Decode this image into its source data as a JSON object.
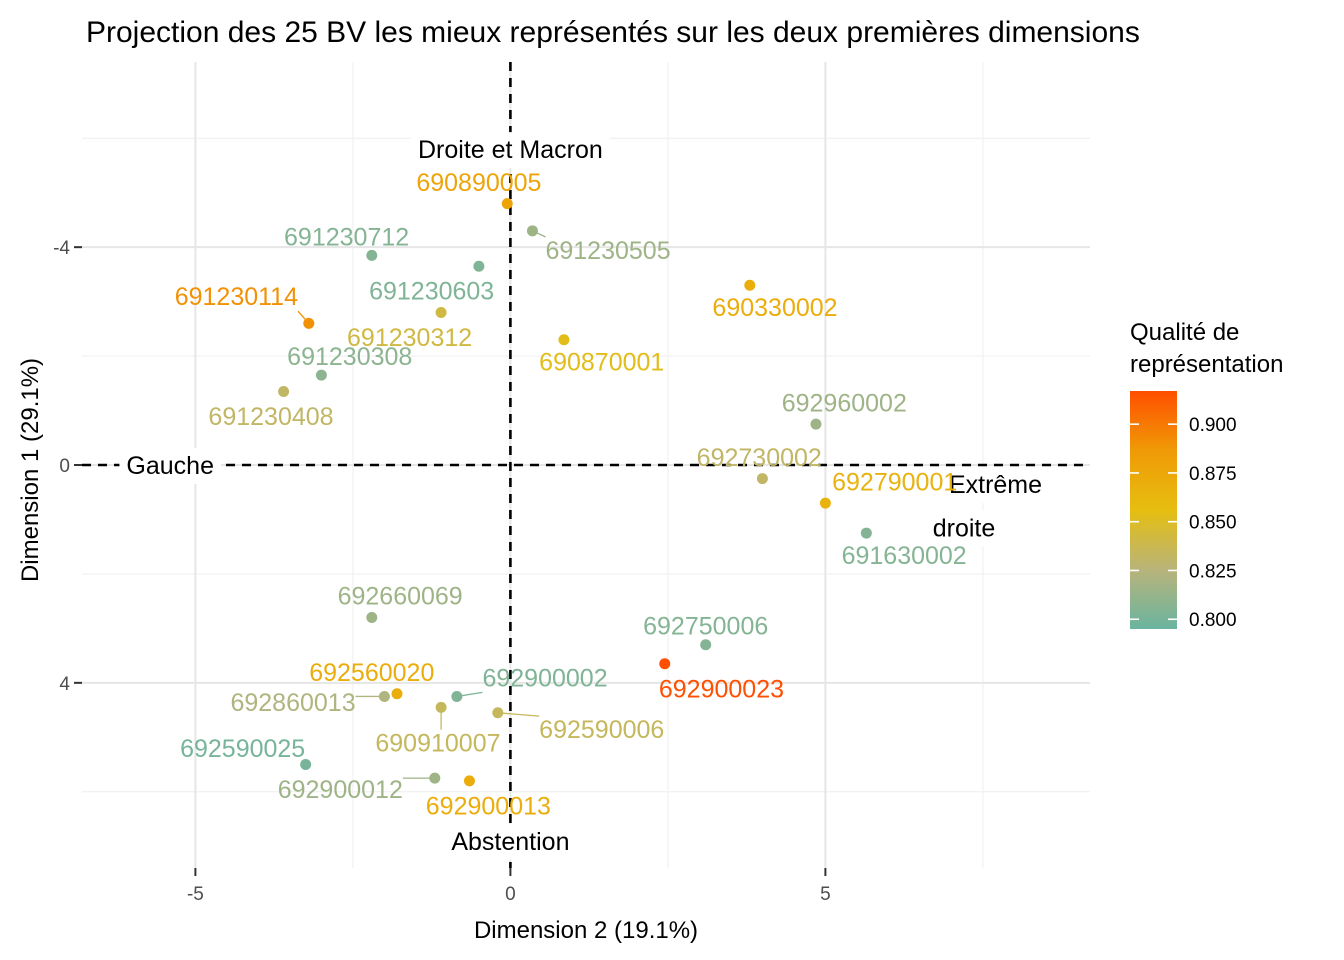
{
  "chart_data": {
    "type": "scatter",
    "title": "Projection des 25 BV les mieux représentés sur les deux premières dimensions",
    "xlabel": "Dimension 2 (19.1%)",
    "ylabel": "Dimension 1 (29.1%)",
    "xlim": [
      -6.8,
      9.2
    ],
    "ylim": [
      -7.4,
      7.4
    ],
    "y_reversed": true,
    "grid": true,
    "x_ticks": [
      -5,
      0,
      5
    ],
    "x_tick_labels": [
      "-5",
      "0",
      "5"
    ],
    "y_ticks": [
      -4,
      0,
      4
    ],
    "y_tick_labels": [
      "-4",
      "0",
      "4"
    ],
    "reference_lines": {
      "x": 0,
      "y": 0,
      "style": "dashed"
    },
    "annotations": [
      {
        "text": "Droite et Macron",
        "x": 0,
        "y": -5.8
      },
      {
        "text": "Gauche",
        "x": -5.4,
        "y": 0
      },
      {
        "text": "Extrême",
        "x": 7.7,
        "y": 0.35
      },
      {
        "text": "droite",
        "x": 7.2,
        "y": 1.15
      },
      {
        "text": "Abstention",
        "x": 0,
        "y": 6.9
      }
    ],
    "legend": {
      "title_lines": [
        "Qualité de",
        "représentation"
      ],
      "position": "right",
      "min": 0.795,
      "max": 0.917,
      "ticks": [
        "0.800",
        "0.825",
        "0.850",
        "0.875",
        "0.900"
      ],
      "tick_values": [
        0.8,
        0.825,
        0.85,
        0.875,
        0.9
      ]
    },
    "points": [
      {
        "label": "690890005",
        "x": -0.05,
        "y": -4.8,
        "quality": 0.868,
        "lx": -0.5,
        "ly": -5.2
      },
      {
        "label": "691230505",
        "x": 0.35,
        "y": -4.3,
        "quality": 0.815,
        "lx": 1.55,
        "ly": -3.95
      },
      {
        "label": "691230712",
        "x": -2.2,
        "y": -3.85,
        "quality": 0.805,
        "lx": -2.6,
        "ly": -4.2
      },
      {
        "label": "691230603",
        "x": -0.5,
        "y": -3.65,
        "quality": 0.803,
        "lx": -1.25,
        "ly": -3.2
      },
      {
        "label": "690330002",
        "x": 3.8,
        "y": -3.3,
        "quality": 0.862,
        "lx": 4.2,
        "ly": -2.9
      },
      {
        "label": "691230114",
        "x": -3.2,
        "y": -2.6,
        "quality": 0.88,
        "lx": -4.35,
        "ly": -3.1
      },
      {
        "label": "691230312",
        "x": -1.1,
        "y": -2.8,
        "quality": 0.838,
        "lx": -1.6,
        "ly": -2.35
      },
      {
        "label": "690870001",
        "x": 0.85,
        "y": -2.3,
        "quality": 0.848,
        "lx": 1.45,
        "ly": -1.9
      },
      {
        "label": "691230308",
        "x": -3.0,
        "y": -1.65,
        "quality": 0.808,
        "lx": -2.55,
        "ly": -2.0
      },
      {
        "label": "691230408",
        "x": -3.6,
        "y": -1.35,
        "quality": 0.83,
        "lx": -3.8,
        "ly": -0.9
      },
      {
        "label": "692960002",
        "x": 4.85,
        "y": -0.75,
        "quality": 0.815,
        "lx": 5.3,
        "ly": -1.15
      },
      {
        "label": "692730002",
        "x": 4.0,
        "y": 0.25,
        "quality": 0.83,
        "lx": 3.95,
        "ly": -0.15
      },
      {
        "label": "692790001",
        "x": 5.0,
        "y": 0.7,
        "quality": 0.858,
        "lx": 6.1,
        "ly": 0.3
      },
      {
        "label": "691630002",
        "x": 5.65,
        "y": 1.25,
        "quality": 0.805,
        "lx": 6.25,
        "ly": 1.65
      },
      {
        "label": "692660069",
        "x": -2.2,
        "y": 2.8,
        "quality": 0.815,
        "lx": -1.75,
        "ly": 2.4
      },
      {
        "label": "692750006",
        "x": 3.1,
        "y": 3.3,
        "quality": 0.805,
        "lx": 3.1,
        "ly": 2.95
      },
      {
        "label": "692560020",
        "x": -1.8,
        "y": 4.2,
        "quality": 0.862,
        "lx": -2.2,
        "ly": 3.8
      },
      {
        "label": "692900023",
        "x": 2.45,
        "y": 3.65,
        "quality": 0.917,
        "lx": 3.35,
        "ly": 4.1
      },
      {
        "label": "692860013",
        "x": -2.0,
        "y": 4.25,
        "quality": 0.822,
        "lx": -3.45,
        "ly": 4.35
      },
      {
        "label": "692900002",
        "x": -0.85,
        "y": 4.25,
        "quality": 0.803,
        "lx": 0.55,
        "ly": 3.9
      },
      {
        "label": "690910007",
        "x": -1.1,
        "y": 4.45,
        "quality": 0.832,
        "lx": -1.15,
        "ly": 5.1
      },
      {
        "label": "692590006",
        "x": -0.2,
        "y": 4.55,
        "quality": 0.832,
        "lx": 1.45,
        "ly": 4.85
      },
      {
        "label": "692590025",
        "x": -3.25,
        "y": 5.5,
        "quality": 0.8,
        "lx": -4.25,
        "ly": 5.2
      },
      {
        "label": "692900012",
        "x": -1.2,
        "y": 5.75,
        "quality": 0.815,
        "lx": -2.7,
        "ly": 5.95
      },
      {
        "label": "692900013",
        "x": -0.65,
        "y": 5.8,
        "quality": 0.862,
        "lx": -0.35,
        "ly": 6.25
      }
    ]
  }
}
